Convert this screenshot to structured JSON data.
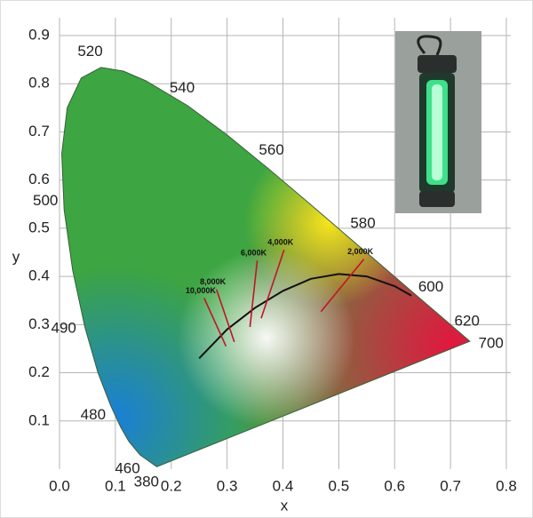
{
  "chart_data": {
    "type": "chromaticity",
    "x_label": "x",
    "y_label": "y",
    "xlim": [
      0,
      0.8
    ],
    "ylim": [
      0,
      0.9
    ],
    "xticks": [
      {
        "value": 0,
        "label": "0.0"
      },
      0.1,
      0.2,
      0.3,
      0.4,
      0.5,
      0.6,
      0.7,
      0.8
    ],
    "yticks": [
      0.1,
      0.2,
      0.3,
      0.4,
      0.5,
      0.6,
      0.7,
      0.8,
      0.9
    ],
    "grid": true,
    "locus": {
      "labels": [
        "380",
        "460",
        null,
        null,
        "480",
        null,
        "490",
        null,
        "500",
        null,
        null,
        null,
        "520",
        null,
        null,
        "540",
        null,
        "560",
        null,
        "580",
        null,
        "600",
        "620",
        "700"
      ],
      "x": [
        0.1741,
        0.144,
        0.1241,
        0.1096,
        0.0913,
        0.0687,
        0.0454,
        0.0235,
        0.0082,
        0.0039,
        0.0139,
        0.0389,
        0.0743,
        0.1142,
        0.1547,
        0.2296,
        0.3016,
        0.3731,
        0.4441,
        0.5125,
        0.5752,
        0.627,
        0.6915,
        0.7347
      ],
      "y": [
        0.005,
        0.0297,
        0.0578,
        0.0868,
        0.1327,
        0.2007,
        0.295,
        0.4127,
        0.5384,
        0.6548,
        0.7502,
        0.812,
        0.8338,
        0.8262,
        0.8059,
        0.7543,
        0.6923,
        0.6245,
        0.5547,
        0.4866,
        0.4242,
        0.3725,
        0.3083,
        0.2653
      ]
    },
    "planckian": {
      "x": [
        0.25,
        0.3,
        0.35,
        0.4,
        0.45,
        0.5,
        0.55,
        0.6,
        0.63
      ],
      "y": [
        0.23,
        0.29,
        0.335,
        0.37,
        0.395,
        0.405,
        0.4,
        0.38,
        0.36
      ]
    },
    "isotherms": [
      {
        "label": "10,000K",
        "x": [
          0.259,
          0.298
        ],
        "y": [
          0.355,
          0.255
        ]
      },
      {
        "label": "8,000K",
        "x": [
          0.281,
          0.313
        ],
        "y": [
          0.373,
          0.264
        ]
      },
      {
        "label": "6,000K",
        "x": [
          0.354,
          0.341
        ],
        "y": [
          0.433,
          0.295
        ]
      },
      {
        "label": "4,000K",
        "x": [
          0.402,
          0.361
        ],
        "y": [
          0.455,
          0.313
        ]
      },
      {
        "label": "2,000K",
        "x": [
          0.545,
          0.468
        ],
        "y": [
          0.436,
          0.327
        ]
      }
    ]
  }
}
